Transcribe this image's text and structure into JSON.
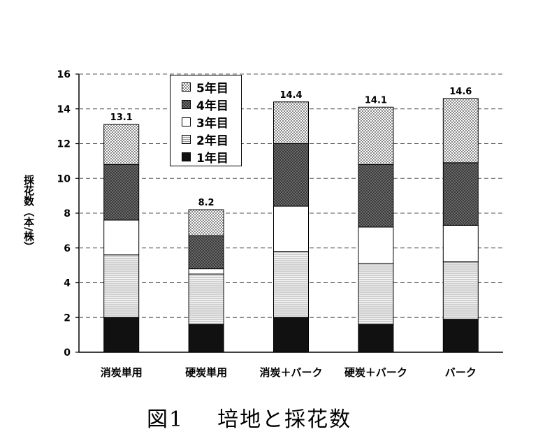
{
  "chart_data": {
    "type": "bar",
    "stacked": true,
    "categories": [
      "消炭単用",
      "硬炭単用",
      "消炭＋バーク",
      "硬炭＋バーク",
      "バーク"
    ],
    "series": [
      {
        "name": "1年目",
        "values": [
          2.0,
          1.6,
          2.0,
          1.6,
          1.9
        ],
        "color": "#111111",
        "pattern": "solid"
      },
      {
        "name": "2年目",
        "values": [
          3.6,
          2.9,
          3.8,
          3.5,
          3.3
        ],
        "color": "#bbbbbb",
        "pattern": "hlines"
      },
      {
        "name": "3年目",
        "values": [
          2.0,
          0.3,
          2.6,
          2.1,
          2.1
        ],
        "color": "#ffffff",
        "pattern": "blank"
      },
      {
        "name": "4年目",
        "values": [
          3.2,
          1.9,
          3.6,
          3.6,
          3.6
        ],
        "color": "#555555",
        "pattern": "dark-checker"
      },
      {
        "name": "5年目",
        "values": [
          2.3,
          1.5,
          2.4,
          3.3,
          3.7
        ],
        "color": "#cccccc",
        "pattern": "light-checker"
      }
    ],
    "totals": [
      "13.1",
      "8.2",
      "14.4",
      "14.1",
      "14.6"
    ],
    "ylabel": "採花数（本/株）",
    "xlabel": "",
    "ylim": [
      0,
      16
    ],
    "yticks": [
      "0",
      "2",
      "4",
      "6",
      "8",
      "10",
      "12",
      "14",
      "16"
    ],
    "grid": true,
    "legend_position": "top-left",
    "legend_order": [
      "5年目",
      "4年目",
      "3年目",
      "2年目",
      "1年目"
    ]
  },
  "caption": {
    "number": "図1",
    "text": "培地と採花数"
  }
}
